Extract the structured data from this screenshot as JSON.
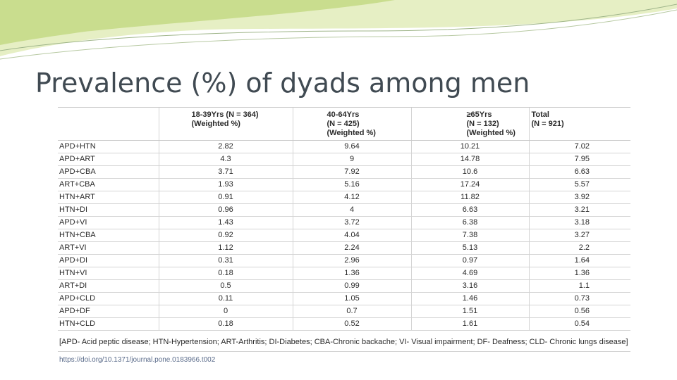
{
  "slide": {
    "title": "Prevalence (%) of dyads among men"
  },
  "table": {
    "headers": [
      "",
      "18-39Yrs (N = 364)\n(Weighted %)",
      "40-64Yrs\n(N = 425)\n(Weighted %)",
      "≥65Yrs\n(N = 132)\n(Weighted %)",
      "Total\n(N = 921)"
    ],
    "rows": [
      [
        "APD+HTN",
        "2.82",
        "9.64",
        "10.21",
        "7.02"
      ],
      [
        "APD+ART",
        "4.3",
        "9",
        "14.78",
        "7.95"
      ],
      [
        "APD+CBA",
        "3.71",
        "7.92",
        "10.6",
        "6.63"
      ],
      [
        "ART+CBA",
        "1.93",
        "5.16",
        "17.24",
        "5.57"
      ],
      [
        "HTN+ART",
        "0.91",
        "4.12",
        "11.82",
        "3.92"
      ],
      [
        "HTN+DI",
        "0.96",
        "4",
        "6.63",
        "3.21"
      ],
      [
        "APD+VI",
        "1.43",
        "3.72",
        "6.38",
        "3.18"
      ],
      [
        "HTN+CBA",
        "0.92",
        "4.04",
        "7.38",
        "3.27"
      ],
      [
        "ART+VI",
        "1.12",
        "2.24",
        "5.13",
        "2.2"
      ],
      [
        "APD+DI",
        "0.31",
        "2.96",
        "0.97",
        "1.64"
      ],
      [
        "HTN+VI",
        "0.18",
        "1.36",
        "4.69",
        "1.36"
      ],
      [
        "ART+DI",
        "0.5",
        "0.99",
        "3.16",
        "1.1"
      ],
      [
        "APD+CLD",
        "0.11",
        "1.05",
        "1.46",
        "0.73"
      ],
      [
        "APD+DF",
        "0",
        "0.7",
        "1.51",
        "0.56"
      ],
      [
        "HTN+CLD",
        "0.18",
        "0.52",
        "1.61",
        "0.54"
      ]
    ],
    "footnote": "[APD- Acid peptic disease; HTN-Hypertension; ART-Arthritis; DI-Diabetes; CBA-Chronic backache; VI- Visual impairment; DF- Deafness; CLD- Chronic lungs disease]",
    "doi": "https://doi.org/10.1371/journal.pone.0183966.t002"
  },
  "colors": {
    "title": "#404a52",
    "decor_green": "#c9dd8e",
    "decor_light": "#e6efc4"
  }
}
